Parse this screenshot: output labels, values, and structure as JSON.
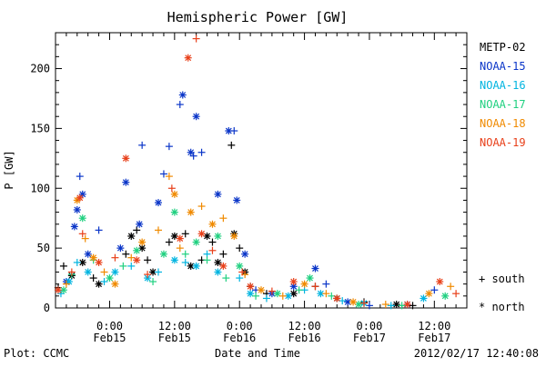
{
  "chart_data": {
    "type": "scatter",
    "title": "Hemispheric Power [GW]",
    "xlabel": "Date and Time",
    "ylabel": "P [GW]",
    "ylim": [
      0,
      230
    ],
    "yticks": [
      0,
      50,
      100,
      150,
      200
    ],
    "xlim": [
      "2012-02-14 14:00",
      "2012-02-17 18:00"
    ],
    "xticks": [
      {
        "time": "2012-02-15 00:00",
        "top": "0:00",
        "bottom": "Feb15"
      },
      {
        "time": "2012-02-15 12:00",
        "top": "12:00",
        "bottom": "Feb15"
      },
      {
        "time": "2012-02-16 00:00",
        "top": "0:00",
        "bottom": "Feb16"
      },
      {
        "time": "2012-02-16 12:00",
        "top": "12:00",
        "bottom": "Feb16"
      },
      {
        "time": "2012-02-17 00:00",
        "top": "0:00",
        "bottom": "Feb17"
      },
      {
        "time": "2012-02-17 12:00",
        "top": "12:00",
        "bottom": "Feb17"
      }
    ],
    "minor_ticks_hours": 2,
    "legend": {
      "placement": "right",
      "symbols": [
        {
          "marker": "+",
          "label": "south"
        },
        {
          "marker": "*",
          "label": "north"
        }
      ]
    },
    "series": [
      {
        "name": "METP-02",
        "color": "#000000",
        "points": [
          [
            "2012-02-14 14:30",
            17,
            "+"
          ],
          [
            "2012-02-14 15:30",
            35,
            "+"
          ],
          [
            "2012-02-14 17:00",
            27,
            "*"
          ],
          [
            "2012-02-14 19:00",
            38,
            "*"
          ],
          [
            "2012-02-14 21:00",
            25,
            "+"
          ],
          [
            "2012-02-14 22:00",
            20,
            "*"
          ],
          [
            "2012-02-15 03:00",
            45,
            "+"
          ],
          [
            "2012-02-15 04:00",
            60,
            "*"
          ],
          [
            "2012-02-15 05:00",
            65,
            "+"
          ],
          [
            "2012-02-15 06:00",
            50,
            "*"
          ],
          [
            "2012-02-15 07:00",
            40,
            "+"
          ],
          [
            "2012-02-15 08:00",
            30,
            "*"
          ],
          [
            "2012-02-15 11:00",
            55,
            "+"
          ],
          [
            "2012-02-15 12:00",
            60,
            "*"
          ],
          [
            "2012-02-15 14:00",
            62,
            "+"
          ],
          [
            "2012-02-15 15:00",
            35,
            "*"
          ],
          [
            "2012-02-15 17:00",
            40,
            "+"
          ],
          [
            "2012-02-15 18:00",
            60,
            "*"
          ],
          [
            "2012-02-15 19:00",
            55,
            "+"
          ],
          [
            "2012-02-15 20:00",
            38,
            "*"
          ],
          [
            "2012-02-15 21:00",
            45,
            "+"
          ],
          [
            "2012-02-15 22:30",
            136,
            "+"
          ],
          [
            "2012-02-15 23:00",
            62,
            "*"
          ],
          [
            "2012-02-16 00:00",
            50,
            "+"
          ],
          [
            "2012-02-16 01:00",
            30,
            "*"
          ],
          [
            "2012-02-16 02:00",
            18,
            "+"
          ],
          [
            "2012-02-16 05:00",
            12,
            "+"
          ],
          [
            "2012-02-16 10:00",
            12,
            "*"
          ],
          [
            "2012-02-16 14:00",
            18,
            "+"
          ],
          [
            "2012-02-16 18:00",
            8,
            "*"
          ],
          [
            "2012-02-16 23:00",
            5,
            "+"
          ],
          [
            "2012-02-17 05:00",
            3,
            "*"
          ],
          [
            "2012-02-17 08:00",
            2,
            "+"
          ]
        ]
      },
      {
        "name": "NOAA-15",
        "color": "#0a35c8",
        "points": [
          [
            "2012-02-14 16:00",
            22,
            "*"
          ],
          [
            "2012-02-14 17:30",
            68,
            "*"
          ],
          [
            "2012-02-14 18:00",
            82,
            "*"
          ],
          [
            "2012-02-14 18:30",
            110,
            "+"
          ],
          [
            "2012-02-14 19:00",
            95,
            "*"
          ],
          [
            "2012-02-14 20:00",
            45,
            "*"
          ],
          [
            "2012-02-14 22:00",
            65,
            "+"
          ],
          [
            "2012-02-15 02:00",
            50,
            "*"
          ],
          [
            "2012-02-15 03:00",
            105,
            "*"
          ],
          [
            "2012-02-15 05:30",
            70,
            "*"
          ],
          [
            "2012-02-15 06:00",
            136,
            "+"
          ],
          [
            "2012-02-15 09:00",
            88,
            "*"
          ],
          [
            "2012-02-15 10:00",
            112,
            "+"
          ],
          [
            "2012-02-15 11:00",
            135,
            "+"
          ],
          [
            "2012-02-15 13:00",
            170,
            "+"
          ],
          [
            "2012-02-15 13:30",
            178,
            "*"
          ],
          [
            "2012-02-15 15:00",
            130,
            "*"
          ],
          [
            "2012-02-15 15:30",
            127,
            "+"
          ],
          [
            "2012-02-15 16:00",
            160,
            "*"
          ],
          [
            "2012-02-15 17:00",
            130,
            "+"
          ],
          [
            "2012-02-15 20:00",
            95,
            "*"
          ],
          [
            "2012-02-15 22:00",
            148,
            "*"
          ],
          [
            "2012-02-15 23:00",
            148,
            "+"
          ],
          [
            "2012-02-15 23:30",
            90,
            "*"
          ],
          [
            "2012-02-16 01:00",
            45,
            "*"
          ],
          [
            "2012-02-16 03:00",
            15,
            "+"
          ],
          [
            "2012-02-16 06:00",
            12,
            "*"
          ],
          [
            "2012-02-16 10:00",
            18,
            "*"
          ],
          [
            "2012-02-16 14:00",
            33,
            "*"
          ],
          [
            "2012-02-16 16:00",
            20,
            "+"
          ],
          [
            "2012-02-16 20:00",
            5,
            "*"
          ],
          [
            "2012-02-17 00:00",
            2,
            "+"
          ],
          [
            "2012-02-17 07:00",
            3,
            "*"
          ],
          [
            "2012-02-17 12:00",
            15,
            "+"
          ]
        ]
      },
      {
        "name": "NOAA-16",
        "color": "#00b4e0",
        "points": [
          [
            "2012-02-14 15:00",
            12,
            "+"
          ],
          [
            "2012-02-14 16:30",
            22,
            "*"
          ],
          [
            "2012-02-14 18:00",
            38,
            "+"
          ],
          [
            "2012-02-14 20:00",
            30,
            "*"
          ],
          [
            "2012-02-14 23:00",
            22,
            "+"
          ],
          [
            "2012-02-15 01:00",
            30,
            "*"
          ],
          [
            "2012-02-15 04:00",
            35,
            "+"
          ],
          [
            "2012-02-15 07:00",
            25,
            "*"
          ],
          [
            "2012-02-15 09:00",
            30,
            "+"
          ],
          [
            "2012-02-15 12:00",
            40,
            "*"
          ],
          [
            "2012-02-15 14:00",
            38,
            "+"
          ],
          [
            "2012-02-15 16:00",
            35,
            "*"
          ],
          [
            "2012-02-15 18:00",
            45,
            "+"
          ],
          [
            "2012-02-15 20:00",
            30,
            "*"
          ],
          [
            "2012-02-16 00:00",
            25,
            "+"
          ],
          [
            "2012-02-16 02:00",
            12,
            "*"
          ],
          [
            "2012-02-16 05:00",
            8,
            "+"
          ],
          [
            "2012-02-16 09:00",
            10,
            "*"
          ],
          [
            "2012-02-16 12:00",
            15,
            "+"
          ],
          [
            "2012-02-16 15:00",
            12,
            "*"
          ],
          [
            "2012-02-16 19:00",
            6,
            "+"
          ],
          [
            "2012-02-16 23:00",
            4,
            "*"
          ],
          [
            "2012-02-17 04:00",
            2,
            "+"
          ],
          [
            "2012-02-17 10:00",
            8,
            "*"
          ]
        ]
      },
      {
        "name": "NOAA-17",
        "color": "#20d080",
        "points": [
          [
            "2012-02-14 15:30",
            15,
            "*"
          ],
          [
            "2012-02-14 17:00",
            28,
            "+"
          ],
          [
            "2012-02-14 19:00",
            75,
            "*"
          ],
          [
            "2012-02-14 21:00",
            40,
            "+"
          ],
          [
            "2012-02-15 00:00",
            25,
            "*"
          ],
          [
            "2012-02-15 02:30",
            35,
            "+"
          ],
          [
            "2012-02-15 05:00",
            48,
            "*"
          ],
          [
            "2012-02-15 08:00",
            22,
            "+"
          ],
          [
            "2012-02-15 10:00",
            45,
            "*"
          ],
          [
            "2012-02-15 12:00",
            80,
            "*"
          ],
          [
            "2012-02-15 14:00",
            45,
            "+"
          ],
          [
            "2012-02-15 16:00",
            55,
            "*"
          ],
          [
            "2012-02-15 18:00",
            40,
            "+"
          ],
          [
            "2012-02-15 20:00",
            60,
            "*"
          ],
          [
            "2012-02-15 21:30",
            25,
            "+"
          ],
          [
            "2012-02-16 00:00",
            35,
            "*"
          ],
          [
            "2012-02-16 03:00",
            10,
            "+"
          ],
          [
            "2012-02-16 07:00",
            12,
            "*"
          ],
          [
            "2012-02-16 11:00",
            15,
            "+"
          ],
          [
            "2012-02-16 13:00",
            25,
            "*"
          ],
          [
            "2012-02-16 17:00",
            10,
            "+"
          ],
          [
            "2012-02-16 22:00",
            3,
            "*"
          ],
          [
            "2012-02-17 06:00",
            2,
            "+"
          ],
          [
            "2012-02-17 14:00",
            10,
            "*"
          ]
        ]
      },
      {
        "name": "NOAA-18",
        "color": "#f08a00",
        "points": [
          [
            "2012-02-14 16:00",
            20,
            "+"
          ],
          [
            "2012-02-14 18:00",
            90,
            "*"
          ],
          [
            "2012-02-14 19:30",
            58,
            "+"
          ],
          [
            "2012-02-14 21:00",
            42,
            "*"
          ],
          [
            "2012-02-14 23:00",
            30,
            "+"
          ],
          [
            "2012-02-15 01:00",
            20,
            "*"
          ],
          [
            "2012-02-15 04:00",
            42,
            "+"
          ],
          [
            "2012-02-15 06:00",
            55,
            "*"
          ],
          [
            "2012-02-15 09:00",
            65,
            "+"
          ],
          [
            "2012-02-15 11:00",
            110,
            "+"
          ],
          [
            "2012-02-15 12:00",
            95,
            "*"
          ],
          [
            "2012-02-15 13:00",
            50,
            "+"
          ],
          [
            "2012-02-15 15:00",
            80,
            "*"
          ],
          [
            "2012-02-15 17:00",
            85,
            "+"
          ],
          [
            "2012-02-15 19:00",
            70,
            "*"
          ],
          [
            "2012-02-15 21:00",
            75,
            "+"
          ],
          [
            "2012-02-15 23:00",
            60,
            "*"
          ],
          [
            "2012-02-16 01:00",
            28,
            "+"
          ],
          [
            "2012-02-16 04:00",
            15,
            "*"
          ],
          [
            "2012-02-16 08:00",
            10,
            "+"
          ],
          [
            "2012-02-16 12:00",
            20,
            "*"
          ],
          [
            "2012-02-16 16:00",
            12,
            "+"
          ],
          [
            "2012-02-16 21:00",
            5,
            "*"
          ],
          [
            "2012-02-17 03:00",
            3,
            "+"
          ],
          [
            "2012-02-17 11:00",
            12,
            "*"
          ],
          [
            "2012-02-17 15:00",
            18,
            "+"
          ]
        ]
      },
      {
        "name": "NOAA-19",
        "color": "#e8401a",
        "points": [
          [
            "2012-02-14 14:30",
            15,
            "*"
          ],
          [
            "2012-02-14 17:00",
            30,
            "+"
          ],
          [
            "2012-02-14 18:30",
            92,
            "*"
          ],
          [
            "2012-02-14 19:00",
            62,
            "+"
          ],
          [
            "2012-02-14 22:00",
            38,
            "*"
          ],
          [
            "2012-02-15 01:00",
            42,
            "+"
          ],
          [
            "2012-02-15 03:00",
            125,
            "*"
          ],
          [
            "2012-02-15 05:00",
            40,
            "*"
          ],
          [
            "2012-02-15 07:00",
            28,
            "+"
          ],
          [
            "2012-02-15 11:30",
            100,
            "+"
          ],
          [
            "2012-02-15 13:00",
            58,
            "*"
          ],
          [
            "2012-02-15 14:30",
            209,
            "*"
          ],
          [
            "2012-02-15 16:00",
            225,
            "+"
          ],
          [
            "2012-02-15 17:00",
            62,
            "*"
          ],
          [
            "2012-02-15 19:00",
            48,
            "+"
          ],
          [
            "2012-02-15 21:00",
            35,
            "*"
          ],
          [
            "2012-02-16 00:30",
            30,
            "+"
          ],
          [
            "2012-02-16 02:00",
            18,
            "*"
          ],
          [
            "2012-02-16 06:00",
            14,
            "+"
          ],
          [
            "2012-02-16 10:00",
            22,
            "*"
          ],
          [
            "2012-02-16 14:00",
            18,
            "+"
          ],
          [
            "2012-02-16 18:00",
            8,
            "*"
          ],
          [
            "2012-02-16 23:00",
            4,
            "+"
          ],
          [
            "2012-02-17 07:00",
            3,
            "*"
          ],
          [
            "2012-02-17 13:00",
            22,
            "*"
          ],
          [
            "2012-02-17 16:00",
            12,
            "+"
          ]
        ]
      }
    ]
  },
  "footer": {
    "left": "Plot: CCMC",
    "center": "Date and Time",
    "right": "2012/02/17 12:40:08"
  }
}
